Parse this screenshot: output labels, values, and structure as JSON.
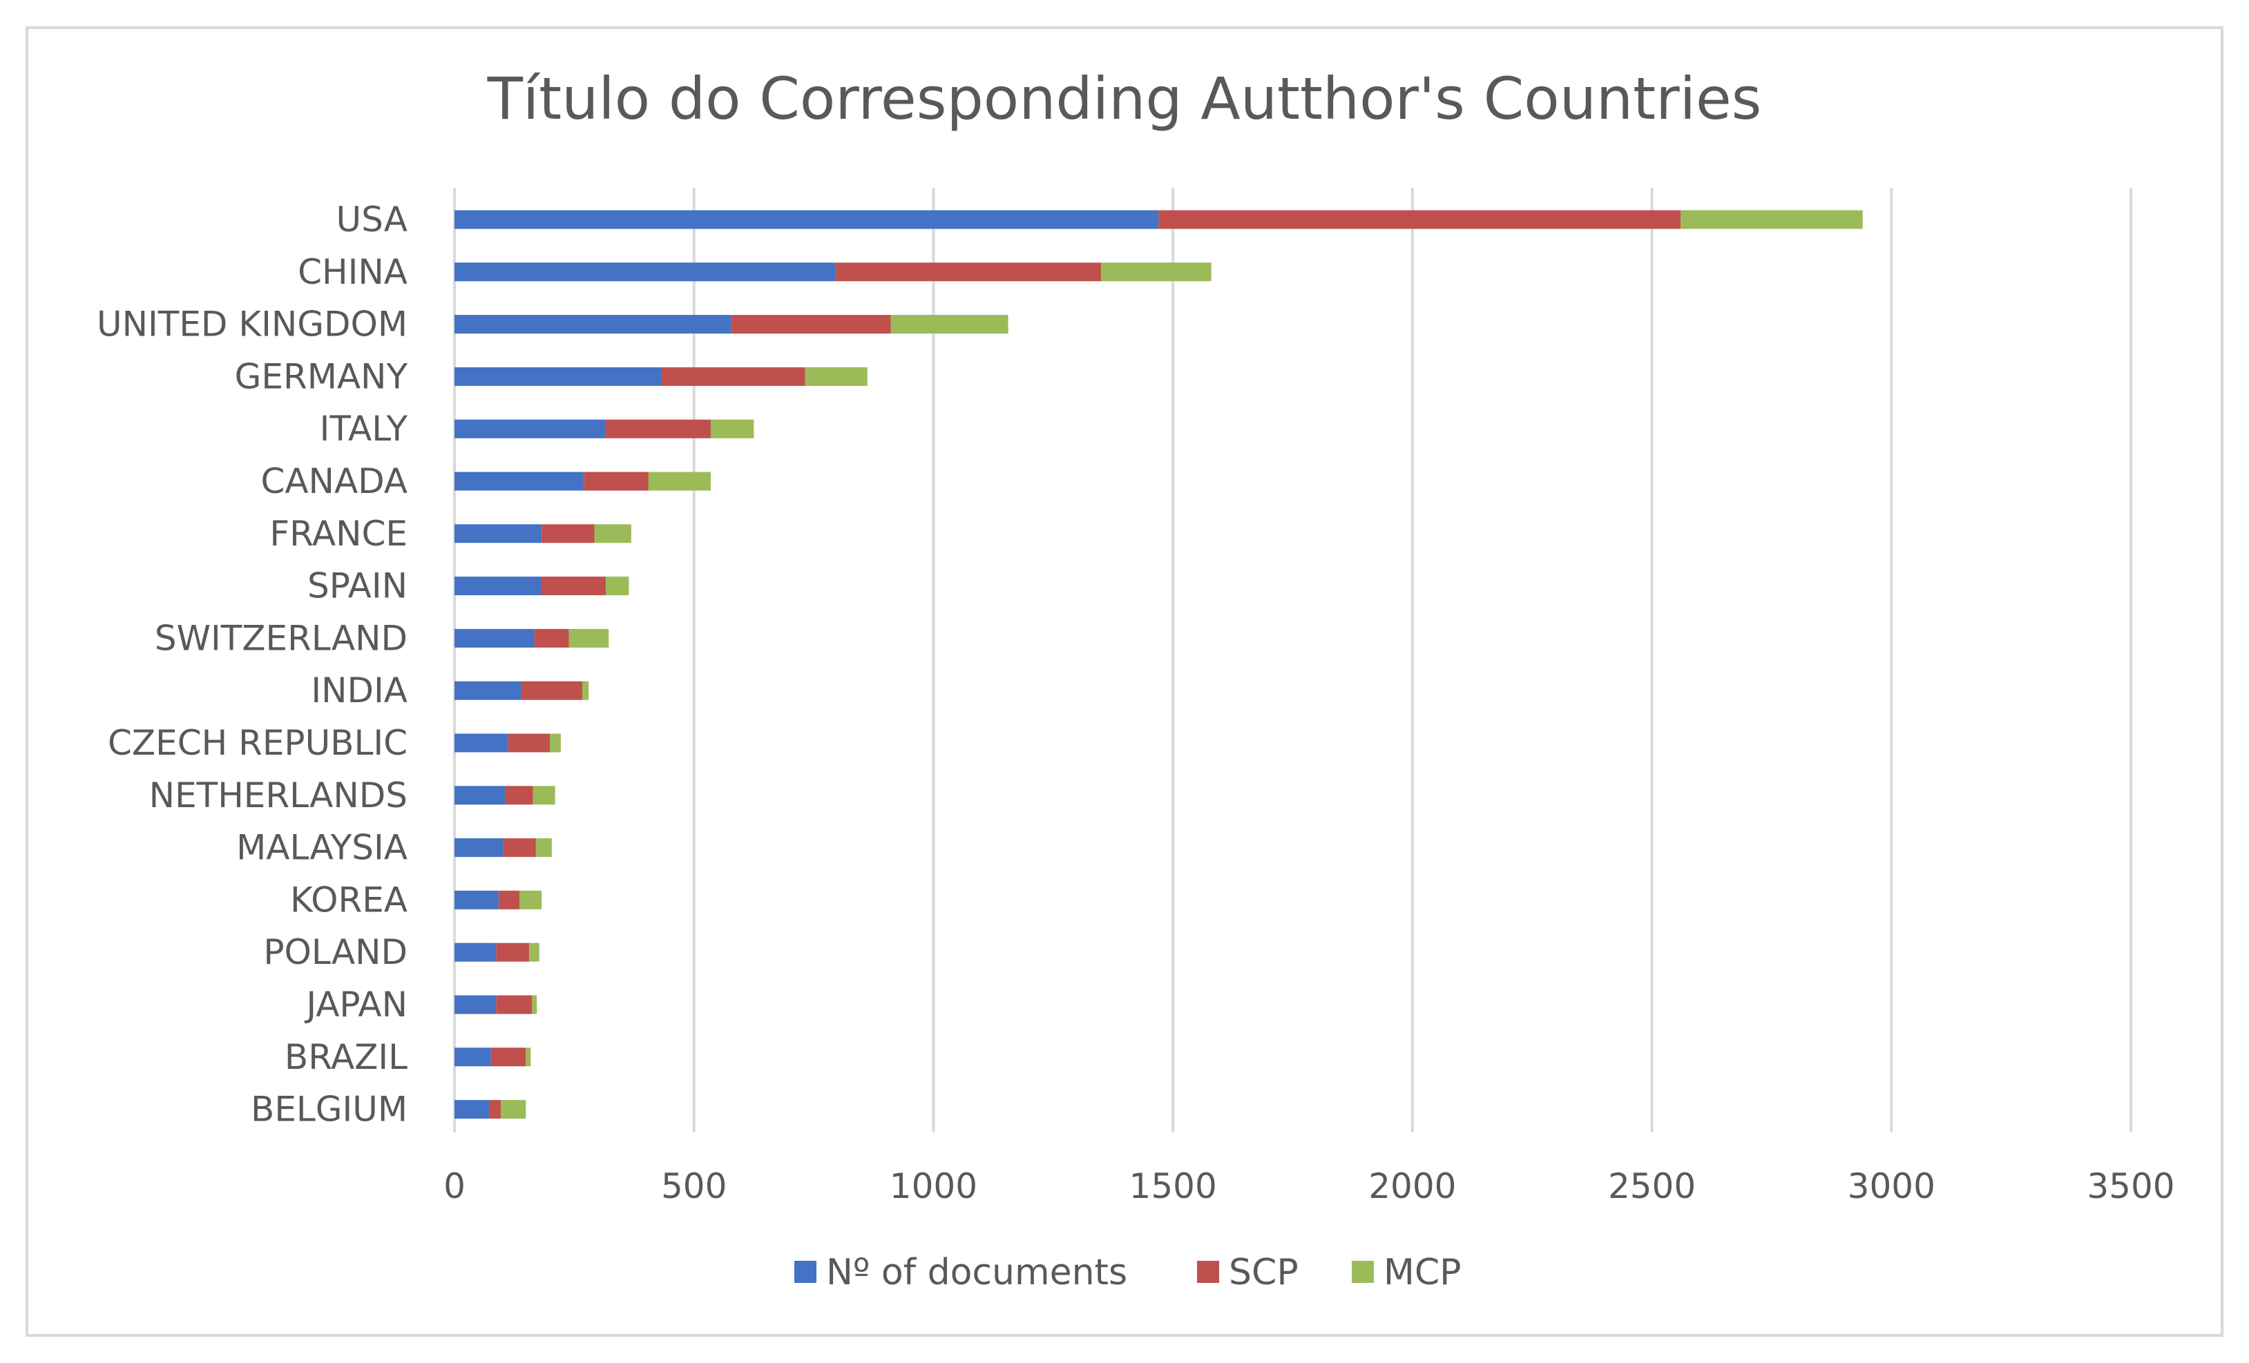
{
  "chart_data": {
    "type": "bar",
    "orientation": "horizontal",
    "stacked": true,
    "title": "Título do Corresponding Autthor's Countries",
    "xlabel": "",
    "ylabel": "",
    "xlim": [
      0,
      3500
    ],
    "xticks": [
      "0",
      "500",
      "1000",
      "1500",
      "2000",
      "2500",
      "3000",
      "3500"
    ],
    "grid": true,
    "legend_position": "bottom",
    "categories": [
      "USA",
      "CHINA",
      "UNITED KINGDOM",
      "GERMANY",
      "ITALY",
      "CANADA",
      "FRANCE",
      "SPAIN",
      "SWITZERLAND",
      "INDIA",
      "CZECH REPUBLIC",
      "NETHERLANDS",
      "MALAYSIA",
      "KOREA",
      "POLAND",
      "JAPAN",
      "BRAZIL",
      "BELGIUM"
    ],
    "series": [
      {
        "name": "Nº of documents",
        "color": "#4472c4",
        "values": [
          1470,
          795,
          578,
          432,
          315,
          270,
          182,
          181,
          167,
          140,
          112,
          106,
          102,
          92,
          87,
          87,
          76,
          72
        ]
      },
      {
        "name": "SCP",
        "color": "#c0504d",
        "values": [
          1090,
          555,
          333,
          300,
          220,
          135,
          110,
          135,
          72,
          127,
          87,
          58,
          68,
          44,
          69,
          75,
          73,
          25
        ]
      },
      {
        "name": "MCP",
        "color": "#9bbb59",
        "values": [
          380,
          230,
          245,
          130,
          90,
          130,
          77,
          48,
          83,
          13,
          23,
          46,
          33,
          46,
          21,
          10,
          10,
          52
        ]
      }
    ]
  }
}
